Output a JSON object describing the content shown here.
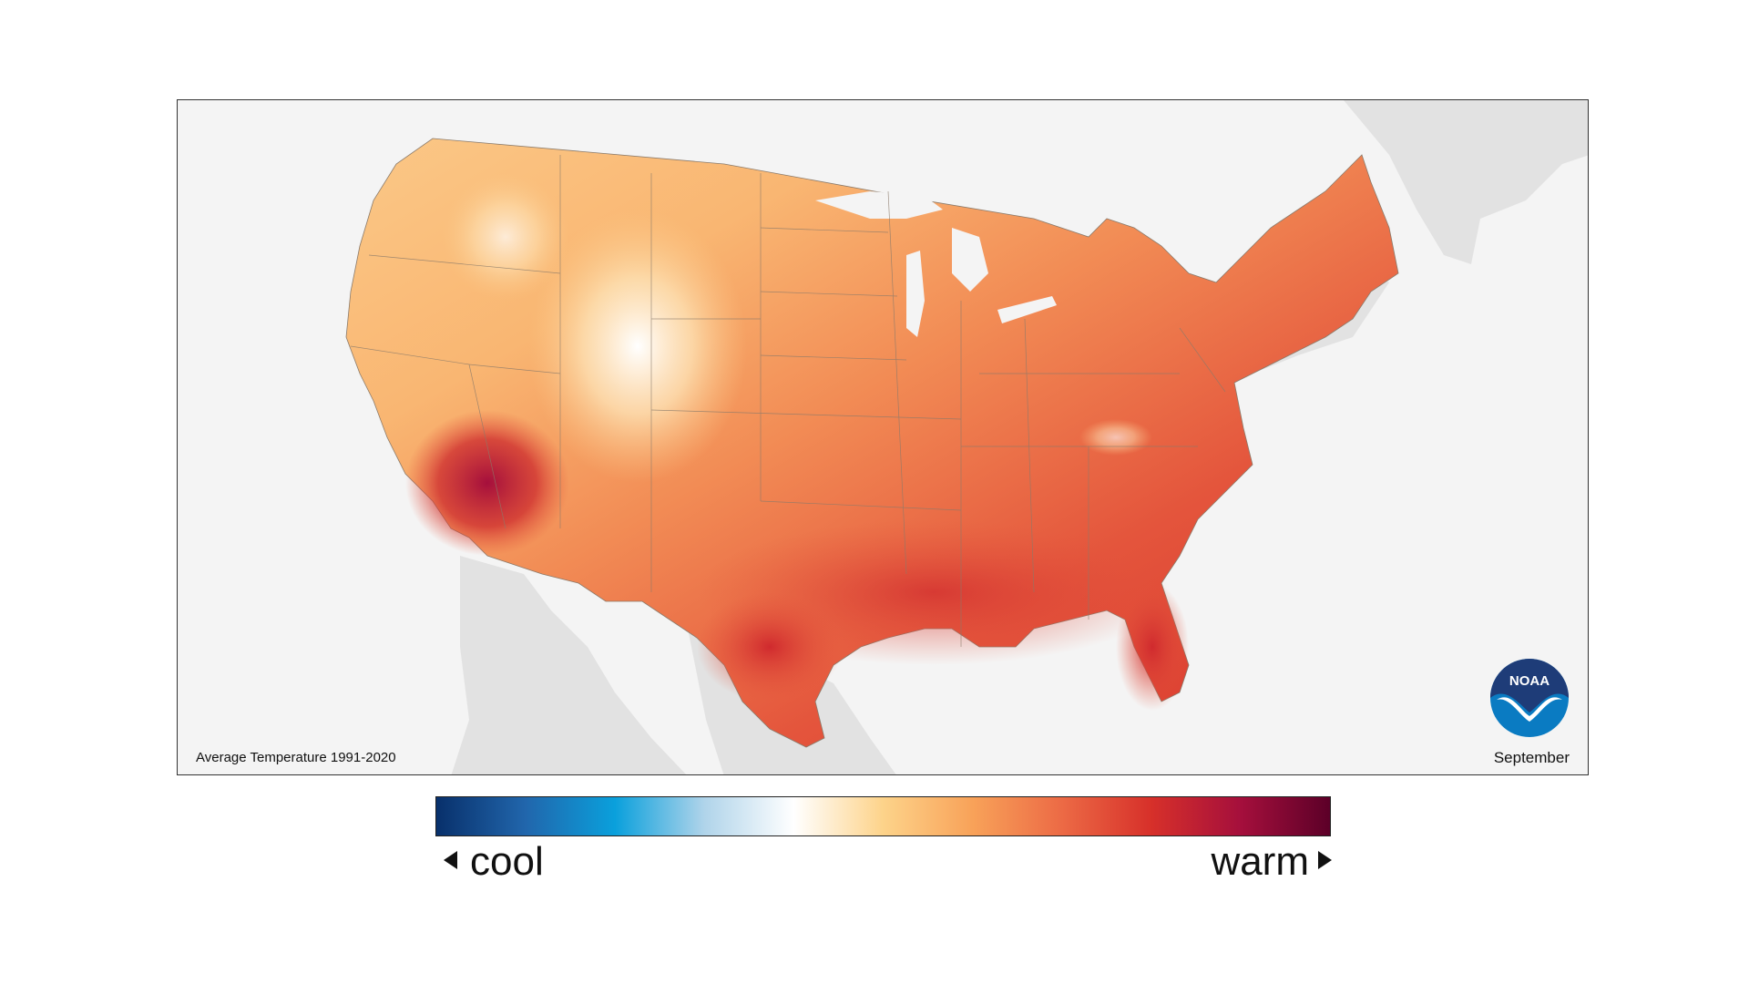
{
  "map": {
    "caption_left": "Average Temperature 1991-2020",
    "caption_right": "September",
    "logo_text": "NOAA",
    "colors": {
      "ocean_background": "#f4f4f4",
      "land_outside": "#e2e2e2",
      "border_lines": "#8a7a6a"
    }
  },
  "legend": {
    "cool_label": "cool",
    "warm_label": "warm",
    "gradient_stops": [
      "#08306b",
      "#2166ac",
      "#0aa0dc",
      "#b0d4ea",
      "#ffffff",
      "#fdd38a",
      "#f8a259",
      "#ec6a45",
      "#d7302a",
      "#a50f3c",
      "#5c0028"
    ]
  }
}
